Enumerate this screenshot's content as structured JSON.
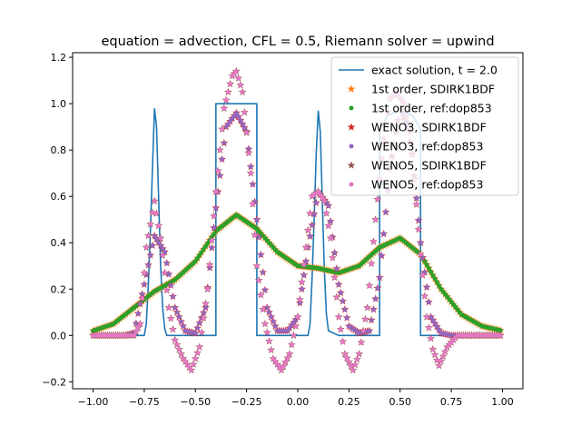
{
  "chart_data": {
    "type": "scatter",
    "title": "equation = advection, CFL = 0.5, Riemann solver = upwind",
    "xlabel": "",
    "ylabel": "",
    "xlim": [
      -1.1,
      1.1
    ],
    "ylim": [
      -0.23,
      1.22
    ],
    "x_ticks": [
      "−1.00",
      "−0.75",
      "−0.50",
      "−0.25",
      "0.00",
      "0.25",
      "0.50",
      "0.75",
      "1.00"
    ],
    "x_tick_values": [
      -1.0,
      -0.75,
      -0.5,
      -0.25,
      0.0,
      0.25,
      0.5,
      0.75,
      1.0
    ],
    "y_ticks": [
      "−0.2",
      "0.0",
      "0.2",
      "0.4",
      "0.6",
      "0.8",
      "1.0",
      "1.2"
    ],
    "y_tick_values": [
      -0.2,
      0.0,
      0.2,
      0.4,
      0.6,
      0.8,
      1.0,
      1.2
    ],
    "grid": false,
    "legend_position": "top-right",
    "series": [
      {
        "name": "exact solution, t = 2.0",
        "style": "line",
        "color": "#1f77b4",
        "x": [
          -1.0,
          -0.75,
          -0.74,
          -0.73,
          -0.72,
          -0.71,
          -0.7,
          -0.69,
          -0.68,
          -0.67,
          -0.66,
          -0.65,
          -0.64,
          -0.6,
          -0.4,
          -0.4,
          -0.2,
          -0.2,
          0.0,
          0.05,
          0.06,
          0.07,
          0.08,
          0.09,
          0.1,
          0.11,
          0.12,
          0.13,
          0.14,
          0.15,
          0.2,
          0.4,
          0.4,
          0.44,
          0.5,
          0.56,
          0.6,
          0.6,
          1.0
        ],
        "y": [
          0.0,
          0.0,
          0.05,
          0.22,
          0.45,
          0.72,
          0.98,
          0.9,
          0.6,
          0.3,
          0.12,
          0.03,
          0.0,
          0.0,
          0.0,
          1.0,
          1.0,
          0.0,
          0.0,
          0.0,
          0.05,
          0.25,
          0.5,
          0.78,
          0.97,
          0.88,
          0.58,
          0.28,
          0.09,
          0.02,
          0.0,
          0.0,
          0.89,
          0.95,
          0.97,
          0.95,
          0.89,
          0.0,
          0.0
        ]
      },
      {
        "name": "1st order, SDIRK1BDF",
        "style": "star",
        "color": "#ff7f0e",
        "model": "first"
      },
      {
        "name": "1st order, ref:dop853",
        "style": "dot",
        "color": "#2ca02c",
        "model": "first"
      },
      {
        "name": "WENO3, SDIRK1BDF",
        "style": "star",
        "color": "#d62728",
        "model": "weno3"
      },
      {
        "name": "WENO3, ref:dop853",
        "style": "dot",
        "color": "#9467bd",
        "model": "weno3"
      },
      {
        "name": "WENO5, SDIRK1BDF",
        "style": "star",
        "color": "#8c564b",
        "model": "weno5"
      },
      {
        "name": "WENO5, ref:dop853",
        "style": "dot",
        "color": "#e377c2",
        "model": "weno5"
      }
    ],
    "profiles": {
      "first": {
        "x": [
          -1.0,
          -0.9,
          -0.8,
          -0.7,
          -0.6,
          -0.5,
          -0.4,
          -0.3,
          -0.2,
          -0.1,
          0.0,
          0.1,
          0.2,
          0.3,
          0.4,
          0.5,
          0.6,
          0.7,
          0.8,
          0.9,
          1.0
        ],
        "y": [
          0.02,
          0.05,
          0.12,
          0.19,
          0.24,
          0.32,
          0.45,
          0.52,
          0.46,
          0.36,
          0.3,
          0.29,
          0.27,
          0.3,
          0.38,
          0.42,
          0.35,
          0.2,
          0.09,
          0.04,
          0.02
        ]
      },
      "weno3": {
        "x": [
          -1.0,
          -0.85,
          -0.8,
          -0.75,
          -0.7,
          -0.65,
          -0.6,
          -0.55,
          -0.5,
          -0.45,
          -0.4,
          -0.35,
          -0.3,
          -0.25,
          -0.2,
          -0.15,
          -0.1,
          -0.05,
          0.0,
          0.05,
          0.1,
          0.15,
          0.2,
          0.25,
          0.3,
          0.35,
          0.4,
          0.45,
          0.5,
          0.55,
          0.6,
          0.65,
          0.7,
          0.75,
          0.8,
          0.9,
          1.0
        ],
        "y": [
          0.0,
          0.0,
          0.01,
          0.22,
          0.43,
          0.36,
          0.12,
          0.02,
          0.01,
          0.12,
          0.55,
          0.9,
          0.96,
          0.88,
          0.5,
          0.12,
          0.02,
          0.02,
          0.08,
          0.38,
          0.62,
          0.56,
          0.22,
          0.04,
          0.01,
          0.02,
          0.25,
          0.72,
          0.98,
          0.88,
          0.4,
          0.08,
          0.01,
          0.0,
          0.0,
          0.0,
          0.0
        ]
      },
      "weno5": {
        "x": [
          -1.0,
          -0.85,
          -0.8,
          -0.77,
          -0.74,
          -0.7,
          -0.67,
          -0.63,
          -0.6,
          -0.56,
          -0.52,
          -0.48,
          -0.44,
          -0.4,
          -0.36,
          -0.32,
          -0.3,
          -0.27,
          -0.23,
          -0.2,
          -0.16,
          -0.12,
          -0.08,
          -0.04,
          0.0,
          0.04,
          0.07,
          0.1,
          0.13,
          0.16,
          0.2,
          0.23,
          0.27,
          0.3,
          0.34,
          0.38,
          0.42,
          0.45,
          0.48,
          0.52,
          0.56,
          0.6,
          0.63,
          0.66,
          0.69,
          0.73,
          0.78,
          0.85,
          1.0
        ],
        "y": [
          0.0,
          0.0,
          0.0,
          0.05,
          0.38,
          0.58,
          0.42,
          0.12,
          -0.02,
          -0.1,
          -0.15,
          -0.05,
          0.2,
          0.62,
          0.98,
          1.12,
          1.14,
          1.05,
          0.7,
          0.3,
          0.05,
          -0.1,
          -0.15,
          -0.08,
          0.08,
          0.38,
          0.6,
          0.62,
          0.58,
          0.42,
          0.08,
          -0.08,
          -0.15,
          -0.08,
          0.12,
          0.5,
          0.85,
          1.02,
          1.05,
          1.0,
          0.78,
          0.35,
          0.08,
          -0.06,
          -0.13,
          -0.05,
          0.0,
          0.0,
          0.0
        ]
      }
    }
  }
}
